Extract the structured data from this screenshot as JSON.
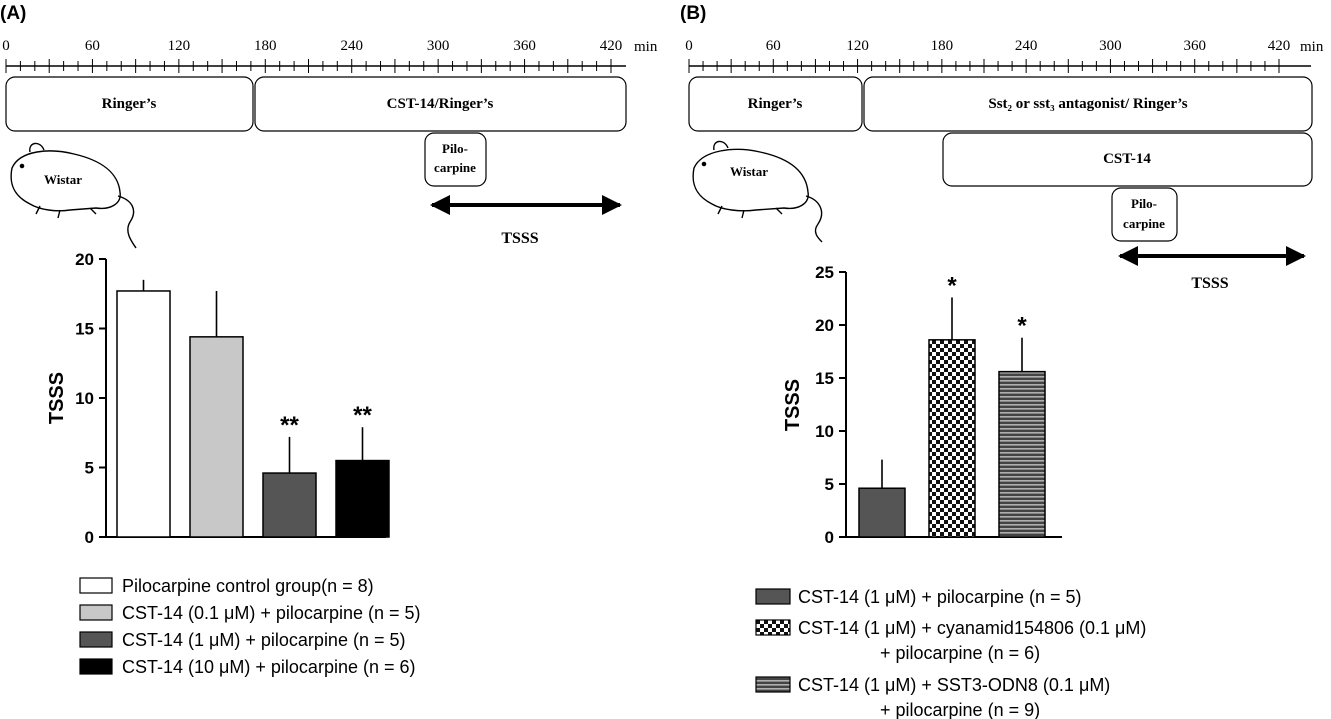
{
  "panels": [
    {
      "label": "(A)",
      "timeline": {
        "ticks": [
          "0",
          "60",
          "120",
          "180",
          "240",
          "300",
          "360",
          "420"
        ],
        "unit": "min",
        "phase1": "Ringer’s",
        "phase2": "CST-14/Ringer’s",
        "pilo_line1": "Pilo-",
        "pilo_line2": "carpine",
        "tsss": "TSSS"
      },
      "animal": "Wistar",
      "legend": [
        {
          "text": "Pilocarpine control group(n = 8)",
          "fill": "white"
        },
        {
          "text": "CST-14  (0.1 μM) + pilocarpine (n = 5)",
          "fill": "lightgray"
        },
        {
          "text": "CST-14  (1 μM) + pilocarpine (n = 5)",
          "fill": "darkgray"
        },
        {
          "text": "CST-14  (10 μM) + pilocarpine (n = 6)",
          "fill": "black"
        }
      ]
    },
    {
      "label": "(B)",
      "timeline": {
        "ticks": [
          "0",
          "60",
          "120",
          "180",
          "240",
          "300",
          "360",
          "420"
        ],
        "unit": "min",
        "phase1": "Ringer’s",
        "phase2": "Sst₂ or sst₃ antagonist/ Ringer’s",
        "phase3": "CST-14",
        "pilo_line1": "Pilo-",
        "pilo_line2": "carpine",
        "tsss": "TSSS"
      },
      "animal": "Wistar",
      "legend": [
        {
          "lines": [
            "CST-14 (1 μM) + pilocarpine (n = 5)"
          ],
          "fill": "darkgray"
        },
        {
          "lines": [
            "CST-14 (1 μM) + cyanamid154806 (0.1 μM)",
            "+ pilocarpine (n = 6)"
          ],
          "fill": "checker"
        },
        {
          "lines": [
            "CST-14 (1 μM) + SST3-ODN8 (0.1 μM)",
            "+ pilocarpine (n = 9)"
          ],
          "fill": "hstripe"
        }
      ]
    }
  ],
  "chart_data": [
    {
      "type": "bar",
      "categories": [
        "Pilocarpine control group(n = 8)",
        "CST-14  (0.1 μM) + pilocarpine (n = 5)",
        "CST-14  (1 μM) + pilocarpine (n = 5)",
        "CST-14  (10 μM) + pilocarpine (n = 6)"
      ],
      "values": [
        17.7,
        14.4,
        4.6,
        5.5
      ],
      "errors": [
        0.8,
        3.3,
        2.6,
        2.4
      ],
      "significance": [
        "",
        "",
        "**",
        "**"
      ],
      "fills": [
        "#ffffff",
        "#c8c8c8",
        "#555555",
        "#000000"
      ],
      "ylabel": "TSSS",
      "ylim": [
        0,
        20
      ],
      "yticks": [
        "0",
        "5",
        "10",
        "15",
        "20"
      ],
      "grid": false
    },
    {
      "type": "bar",
      "categories": [
        "CST-14 (1 μM) + pilocarpine (n = 5)",
        "CST-14 (1 μM) + cyanamid154806 (0.1 μM) + pilocarpine (n = 6)",
        "CST-14 (1 μM) + SST3-ODN8 (0.1 μM) + pilocarpine (n = 9)"
      ],
      "values": [
        4.6,
        18.6,
        15.6
      ],
      "errors": [
        2.7,
        4.0,
        3.2
      ],
      "significance": [
        "",
        "*",
        "*"
      ],
      "fills": [
        "#555555",
        "checker",
        "hstripe"
      ],
      "ylabel": "TSSS",
      "ylim": [
        0,
        25
      ],
      "yticks": [
        "0",
        "5",
        "10",
        "15",
        "20",
        "25"
      ],
      "grid": false
    }
  ]
}
